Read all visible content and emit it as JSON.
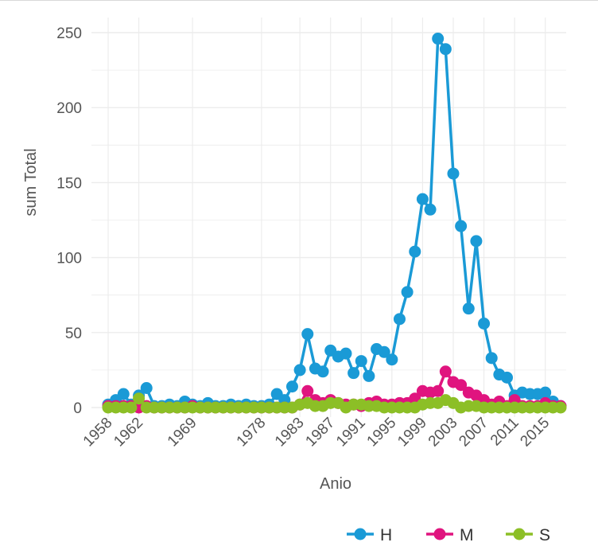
{
  "chart_data": {
    "type": "line",
    "xlabel": "Anio",
    "ylabel": "sum Total",
    "ylim": [
      0,
      250
    ],
    "yticks": [
      0,
      50,
      100,
      150,
      200,
      250
    ],
    "xlim": [
      1958,
      2017
    ],
    "xticks": [
      1958,
      1962,
      1969,
      1978,
      1983,
      1987,
      1991,
      1995,
      1999,
      2003,
      2007,
      2011,
      2015
    ],
    "grid": true,
    "legend_position": "bottom",
    "series": [
      {
        "name": "H",
        "color": "#1a9ad6",
        "x": [
          1958,
          1959,
          1960,
          1961,
          1962,
          1963,
          1964,
          1965,
          1966,
          1967,
          1968,
          1969,
          1970,
          1971,
          1972,
          1973,
          1974,
          1975,
          1976,
          1977,
          1978,
          1979,
          1980,
          1981,
          1982,
          1983,
          1984,
          1985,
          1986,
          1987,
          1988,
          1989,
          1990,
          1991,
          1992,
          1993,
          1994,
          1995,
          1996,
          1997,
          1998,
          1999,
          2000,
          2001,
          2002,
          2003,
          2004,
          2005,
          2006,
          2007,
          2008,
          2009,
          2010,
          2011,
          2012,
          2013,
          2014,
          2015,
          2016,
          2017
        ],
        "values": [
          2,
          5,
          9,
          2,
          8,
          13,
          1,
          1,
          2,
          1,
          4,
          2,
          1,
          3,
          1,
          1,
          2,
          1,
          2,
          1,
          1,
          2,
          9,
          5,
          14,
          25,
          49,
          26,
          24,
          38,
          34,
          36,
          23,
          31,
          21,
          39,
          37,
          32,
          59,
          77,
          104,
          139,
          132,
          246,
          239,
          156,
          121,
          66,
          111,
          56,
          33,
          22,
          20,
          8,
          10,
          9,
          9,
          10,
          4,
          1
        ]
      },
      {
        "name": "M",
        "color": "#e0147f",
        "x": [
          1958,
          1959,
          1960,
          1961,
          1962,
          1963,
          1964,
          1965,
          1966,
          1967,
          1968,
          1969,
          1970,
          1971,
          1972,
          1973,
          1974,
          1975,
          1976,
          1977,
          1978,
          1979,
          1980,
          1981,
          1982,
          1983,
          1984,
          1985,
          1986,
          1987,
          1988,
          1989,
          1990,
          1991,
          1992,
          1993,
          1994,
          1995,
          1996,
          1997,
          1998,
          1999,
          2000,
          2001,
          2002,
          2003,
          2004,
          2005,
          2006,
          2007,
          2008,
          2009,
          2010,
          2011,
          2012,
          2013,
          2014,
          2015,
          2016,
          2017
        ],
        "values": [
          1,
          1,
          1,
          1,
          0,
          1,
          0,
          0,
          0,
          0,
          0,
          1,
          0,
          0,
          0,
          0,
          0,
          0,
          0,
          0,
          0,
          0,
          0,
          0,
          0,
          2,
          11,
          5,
          3,
          5,
          3,
          2,
          2,
          1,
          3,
          4,
          2,
          2,
          3,
          3,
          6,
          11,
          10,
          11,
          24,
          17,
          15,
          10,
          8,
          5,
          2,
          4,
          1,
          5,
          1,
          1,
          1,
          3,
          1,
          1
        ]
      },
      {
        "name": "S",
        "color": "#8cbf26",
        "x": [
          1958,
          1959,
          1960,
          1961,
          1962,
          1963,
          1964,
          1965,
          1966,
          1967,
          1968,
          1969,
          1970,
          1971,
          1972,
          1973,
          1974,
          1975,
          1976,
          1977,
          1978,
          1979,
          1980,
          1981,
          1982,
          1983,
          1984,
          1985,
          1986,
          1987,
          1988,
          1989,
          1990,
          1991,
          1992,
          1993,
          1994,
          1995,
          1996,
          1997,
          1998,
          1999,
          2000,
          2001,
          2002,
          2003,
          2004,
          2005,
          2006,
          2007,
          2008,
          2009,
          2010,
          2011,
          2012,
          2013,
          2014,
          2015,
          2016,
          2017
        ],
        "values": [
          0,
          0,
          0,
          0,
          6,
          0,
          0,
          0,
          0,
          0,
          0,
          0,
          0,
          0,
          0,
          0,
          0,
          0,
          0,
          0,
          0,
          0,
          0,
          0,
          0,
          2,
          3,
          1,
          1,
          3,
          3,
          0,
          2,
          2,
          1,
          1,
          0,
          0,
          0,
          0,
          0,
          2,
          3,
          3,
          5,
          3,
          0,
          1,
          1,
          0,
          0,
          0,
          0,
          0,
          0,
          0,
          0,
          0,
          0,
          0
        ]
      }
    ]
  }
}
